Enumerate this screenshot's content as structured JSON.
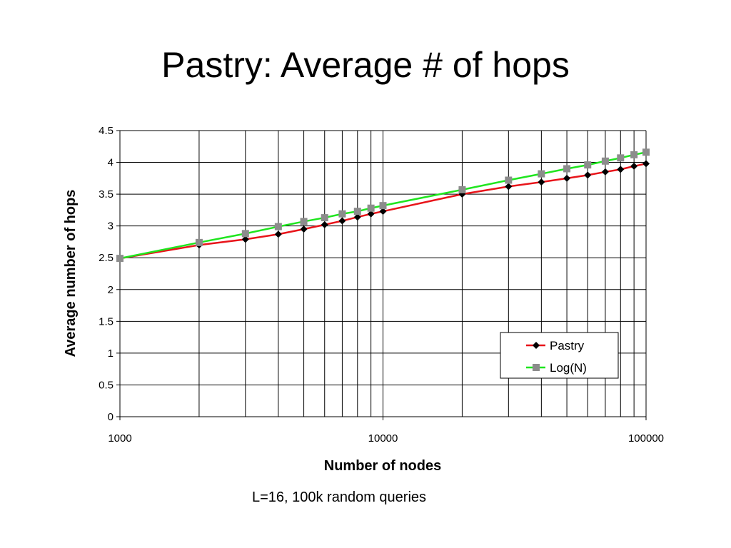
{
  "slide": {
    "title": "Pastry: Average # of hops",
    "caption": "L=16, 100k random queries"
  },
  "colors": {
    "pastry_line": "#e8141a",
    "pastry_marker": "#000000",
    "logn_line": "#1fe51f",
    "logn_marker": "#8c8c8c",
    "grid": "#000000"
  },
  "chart_data": {
    "type": "line",
    "title": "",
    "xlabel": "Number of nodes",
    "ylabel": "Average number of hops",
    "xscale": "log",
    "xlim": [
      1000,
      100000
    ],
    "ylim": [
      0,
      4.5
    ],
    "x_ticks": [
      "1000",
      "10000",
      "100000"
    ],
    "y_ticks": [
      "0",
      "0.5",
      "1",
      "1.5",
      "2",
      "2.5",
      "3",
      "3.5",
      "4",
      "4.5"
    ],
    "grid": true,
    "legend_position": "bottom-right",
    "x": [
      1000,
      2000,
      3000,
      4000,
      5000,
      6000,
      7000,
      8000,
      9000,
      10000,
      20000,
      30000,
      40000,
      50000,
      60000,
      70000,
      80000,
      90000,
      100000
    ],
    "series": [
      {
        "name": "Pastry",
        "marker": "diamond",
        "values": [
          2.49,
          2.7,
          2.79,
          2.87,
          2.95,
          3.02,
          3.08,
          3.14,
          3.19,
          3.23,
          3.5,
          3.62,
          3.69,
          3.75,
          3.8,
          3.85,
          3.89,
          3.94,
          3.98
        ]
      },
      {
        "name": "Log(N)",
        "marker": "square",
        "values": [
          2.49,
          2.74,
          2.88,
          2.99,
          3.07,
          3.13,
          3.19,
          3.23,
          3.28,
          3.32,
          3.57,
          3.72,
          3.82,
          3.9,
          3.96,
          4.02,
          4.07,
          4.12,
          4.16
        ]
      }
    ]
  }
}
